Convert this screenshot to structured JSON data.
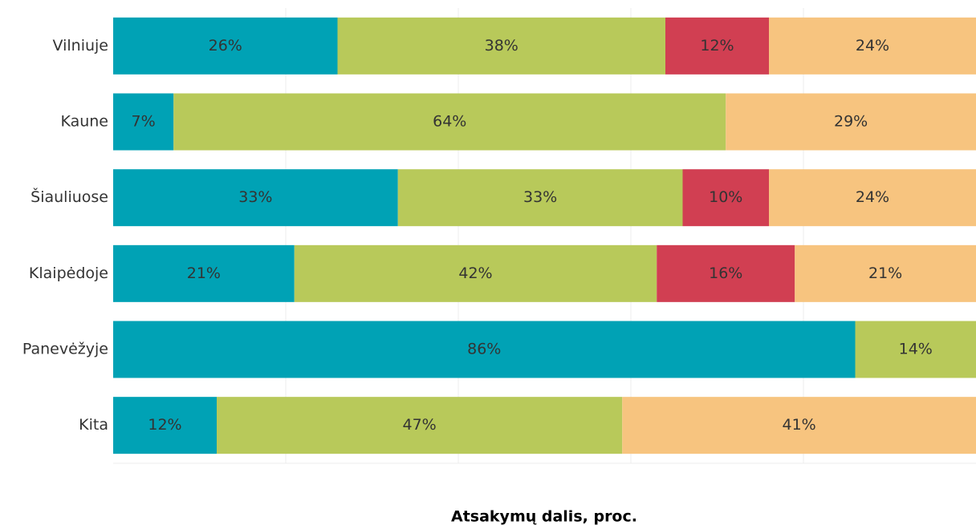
{
  "chart_data": {
    "type": "stacked_barh",
    "xlabel": "Atsakymų dalis, proc.",
    "categories": [
      "Vilniuje",
      "Kaune",
      "Šiauliuose",
      "Klaipėdoje",
      "Panevėžyje",
      "Kita"
    ],
    "series": [
      {
        "color": "#00a2b5",
        "values": [
          26,
          7,
          33,
          21,
          86,
          12
        ],
        "value_labels": [
          "26%",
          "7%",
          "33%",
          "21%",
          "86%",
          "12%"
        ]
      },
      {
        "color": "#b8c95a",
        "values": [
          38,
          64,
          33,
          42,
          14,
          47
        ],
        "value_labels": [
          "38%",
          "64%",
          "33%",
          "42%",
          "14%",
          "47%"
        ]
      },
      {
        "color": "#d13f52",
        "values": [
          12,
          null,
          10,
          16,
          null,
          null
        ],
        "value_labels": [
          "12%",
          null,
          "10%",
          "16%",
          null,
          null
        ]
      },
      {
        "color": "#f7c47f",
        "values": [
          24,
          29,
          24,
          21,
          null,
          41
        ],
        "value_labels": [
          "24%",
          "29%",
          "24%",
          "21%",
          null,
          "41%"
        ]
      }
    ],
    "xlim": [
      0,
      100
    ],
    "xticks": [
      20,
      40,
      60,
      80
    ],
    "grid": true
  }
}
